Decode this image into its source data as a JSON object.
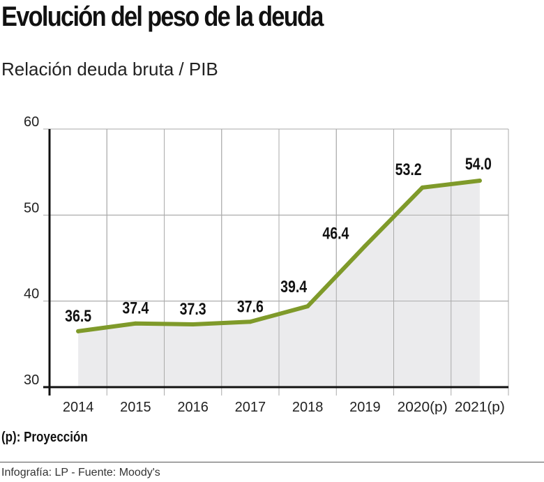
{
  "title": "Evolución del peso de la deuda",
  "subtitle": "Relación deuda bruta / PIB",
  "note": "(p): Proyección",
  "source": "Infografía: LP - Fuente: Moody's",
  "chart_data": {
    "type": "area",
    "title": "Evolución del peso de la deuda",
    "subtitle": "Relación deuda bruta / PIB",
    "categories": [
      "2014",
      "2015",
      "2016",
      "2017",
      "2018",
      "2019",
      "2020(p)",
      "2021(p)"
    ],
    "values": [
      36.5,
      37.4,
      37.3,
      37.6,
      39.4,
      46.4,
      53.2,
      54.0
    ],
    "data_labels": [
      "36.5",
      "37.4",
      "37.3",
      "37.6",
      "39.4",
      "46.4",
      "53.2",
      "54.0"
    ],
    "ylim": [
      30,
      60
    ],
    "yticks": [
      "30",
      "40",
      "50",
      "60"
    ],
    "grid": true,
    "line_color": "#7f9a2a",
    "fill_color": "#ebebed"
  }
}
